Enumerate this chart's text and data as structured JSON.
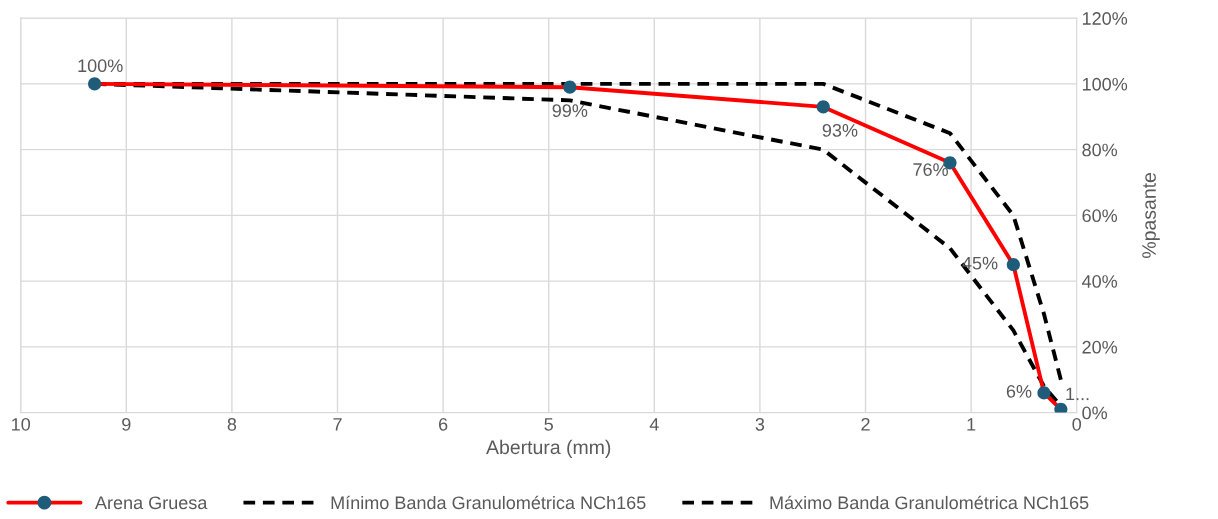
{
  "chart_data": {
    "type": "line",
    "xlabel": "Abertura (mm)",
    "ylabel": "%pasante",
    "xlim": [
      10,
      0
    ],
    "xticks": [
      10,
      9,
      8,
      7,
      6,
      5,
      4,
      3,
      2,
      1,
      0
    ],
    "ylim": [
      0,
      120
    ],
    "yticks": [
      {
        "value": 0,
        "label": "0%"
      },
      {
        "value": 20,
        "label": "20%"
      },
      {
        "value": 40,
        "label": "40%"
      },
      {
        "value": 60,
        "label": "60%"
      },
      {
        "value": 80,
        "label": "80%"
      },
      {
        "value": 100,
        "label": "100%"
      },
      {
        "value": 120,
        "label": "120%"
      }
    ],
    "grid": true,
    "legend": "bottom",
    "series": [
      {
        "name": "Arena Gruesa",
        "color": "#ff0000",
        "colors": [
          "#1f5c7a",
          "#1f5c7a",
          "#1f5c7a",
          "#1f5c7a",
          "#1f5c7a",
          "#1f5c7a",
          "#1f5c7a"
        ],
        "marker": "circle",
        "line_style": "solid",
        "x": [
          9.3,
          4.8,
          2.4,
          1.2,
          0.6,
          0.31,
          0.15
        ],
        "values": [
          100,
          99,
          93,
          76,
          45,
          6,
          1
        ],
        "value_labels": [
          "100%",
          "99%",
          "93%",
          "76%",
          "45%",
          "6%",
          "1..."
        ]
      },
      {
        "name": "Mínimo Banda Granulométrica NCh165",
        "color": "#000000",
        "marker": "none",
        "line_style": "dashed",
        "x": [
          9.3,
          4.8,
          2.4,
          1.2,
          0.6,
          0.31,
          0.15
        ],
        "values": [
          100,
          95,
          80,
          50,
          25,
          8,
          2
        ]
      },
      {
        "name": "Máximo Banda Granulométrica NCh165",
        "color": "#000000",
        "marker": "none",
        "line_style": "dashed",
        "x": [
          9.3,
          4.8,
          2.4,
          1.2,
          0.6,
          0.31,
          0.15
        ],
        "values": [
          100,
          100,
          100,
          85,
          60,
          30,
          10
        ]
      }
    ]
  }
}
